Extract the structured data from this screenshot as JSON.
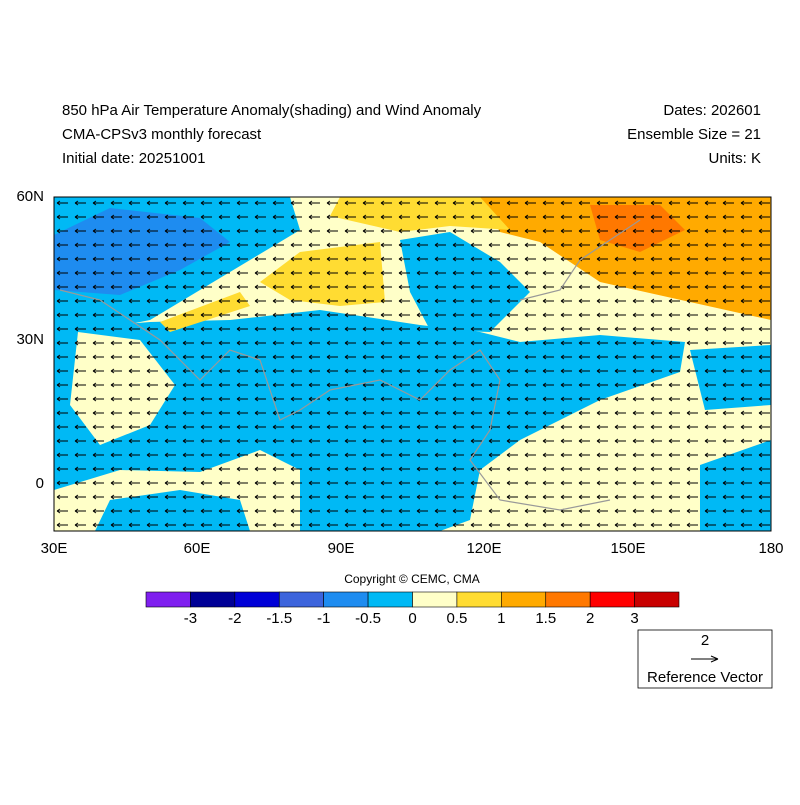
{
  "header": {
    "title_left": [
      "850 hPa Air Temperature Anomaly(shading) and Wind Anomaly",
      "CMA-CPSv3 monthly forecast",
      "Initial date: 20251001"
    ],
    "title_right": [
      "Dates: 202601",
      "Ensemble Size = 21",
      "Units: K"
    ]
  },
  "axes": {
    "x_labels": [
      "30E",
      "60E",
      "90E",
      "120E",
      "150E",
      "180"
    ],
    "y_labels": [
      "60N",
      "30N",
      "0"
    ]
  },
  "copyright": "Copyright © CEMC, CMA",
  "colorbar": {
    "labels": [
      "-3",
      "-2",
      "-1.5",
      "-1",
      "-0.5",
      "0",
      "0.5",
      "1",
      "1.5",
      "2",
      "3"
    ],
    "colors": [
      "#7f1fef",
      "#000096",
      "#0000d7",
      "#3c64dc",
      "#1e8cf0",
      "#00b9f5",
      "#ffffc8",
      "#ffdc32",
      "#ffaa00",
      "#ff7800",
      "#ff0000",
      "#c80000"
    ]
  },
  "reference_vector": {
    "value": "2",
    "label": "Reference Vector"
  }
}
